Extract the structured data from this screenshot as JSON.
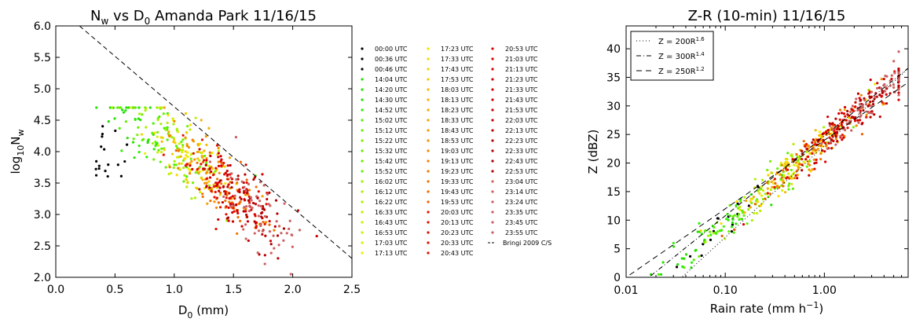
{
  "chart_data": [
    {
      "type": "scatter",
      "title": "N_w vs D_0 Amanda Park 11/16/15",
      "title_parts": {
        "a": "N",
        "a_sub": "w",
        "b": " vs D",
        "b_sub": "0",
        "c": " Amanda Park 11/16/15"
      },
      "xlabel": "D_0 (mm)",
      "xlabel_parts": {
        "a": "D",
        "sub": "0",
        "b": " (mm)"
      },
      "ylabel": "log10 N_w",
      "ylabel_parts": {
        "a": "log",
        "sub1": "10",
        "b": "N",
        "sub2": "w"
      },
      "xlim": [
        0.0,
        2.5
      ],
      "ylim": [
        2.0,
        6.0
      ],
      "xticks": [
        "0.0",
        "0.5",
        "1.0",
        "1.5",
        "2.0",
        "2.5"
      ],
      "yticks": [
        "2.0",
        "2.5",
        "3.0",
        "3.5",
        "4.0",
        "4.5",
        "5.0",
        "5.5",
        "6.0"
      ],
      "reference_line": {
        "name": "Bringi 2009 C/S",
        "x": [
          0.2,
          2.5
        ],
        "y": [
          6.0,
          2.3
        ]
      },
      "legend": {
        "columns": [
          [
            {
              "label": "00:00 UTC",
              "color": "#000000"
            },
            {
              "label": "00:36 UTC",
              "color": "#000000"
            },
            {
              "label": "00:46 UTC",
              "color": "#000000"
            },
            {
              "label": "14:04 UTC",
              "color": "#22e000"
            },
            {
              "label": "14:20 UTC",
              "color": "#22e000"
            },
            {
              "label": "14:30 UTC",
              "color": "#22e000"
            },
            {
              "label": "14:52 UTC",
              "color": "#2bf000"
            },
            {
              "label": "15:02 UTC",
              "color": "#4cf000"
            },
            {
              "label": "15:12 UTC",
              "color": "#66f000"
            },
            {
              "label": "15:22 UTC",
              "color": "#77f000"
            },
            {
              "label": "15:32 UTC",
              "color": "#66f000"
            },
            {
              "label": "15:42 UTC",
              "color": "#66f000"
            },
            {
              "label": "15:52 UTC",
              "color": "#66f000"
            },
            {
              "label": "16:02 UTC",
              "color": "#99f000"
            },
            {
              "label": "16:12 UTC",
              "color": "#aaf000"
            },
            {
              "label": "16:22 UTC",
              "color": "#aaf000"
            },
            {
              "label": "16:33 UTC",
              "color": "#bbf000"
            },
            {
              "label": "16:43 UTC",
              "color": "#ccf000"
            },
            {
              "label": "16:53 UTC",
              "color": "#ccf000"
            },
            {
              "label": "17:03 UTC",
              "color": "#ddf000"
            },
            {
              "label": "17:13 UTC",
              "color": "#eef000"
            }
          ],
          [
            {
              "label": "17:23 UTC",
              "color": "#f4e000"
            },
            {
              "label": "17:33 UTC",
              "color": "#f4d800"
            },
            {
              "label": "17:43 UTC",
              "color": "#f4d000"
            },
            {
              "label": "17:53 UTC",
              "color": "#f4c800"
            },
            {
              "label": "18:03 UTC",
              "color": "#f4b800"
            },
            {
              "label": "18:13 UTC",
              "color": "#f4b000"
            },
            {
              "label": "18:23 UTC",
              "color": "#f4a800"
            },
            {
              "label": "18:33 UTC",
              "color": "#f4a000"
            },
            {
              "label": "18:43 UTC",
              "color": "#f49800"
            },
            {
              "label": "18:53 UTC",
              "color": "#f49000"
            },
            {
              "label": "19:03 UTC",
              "color": "#f08800"
            },
            {
              "label": "19:13 UTC",
              "color": "#f08000"
            },
            {
              "label": "19:23 UTC",
              "color": "#f07800"
            },
            {
              "label": "19:33 UTC",
              "color": "#f07000"
            },
            {
              "label": "19:43 UTC",
              "color": "#f06800"
            },
            {
              "label": "19:53 UTC",
              "color": "#f06000"
            },
            {
              "label": "20:03 UTC",
              "color": "#e81000"
            },
            {
              "label": "20:13 UTC",
              "color": "#e81000"
            },
            {
              "label": "20:23 UTC",
              "color": "#e01000"
            },
            {
              "label": "20:33 UTC",
              "color": "#e01000"
            },
            {
              "label": "20:43 UTC",
              "color": "#e01000"
            }
          ],
          [
            {
              "label": "20:53 UTC",
              "color": "#e00000"
            },
            {
              "label": "21:03 UTC",
              "color": "#d80000"
            },
            {
              "label": "21:13 UTC",
              "color": "#d80000"
            },
            {
              "label": "21:23 UTC",
              "color": "#d00000"
            },
            {
              "label": "21:33 UTC",
              "color": "#d00000"
            },
            {
              "label": "21:43 UTC",
              "color": "#c80000"
            },
            {
              "label": "21:53 UTC",
              "color": "#c80000"
            },
            {
              "label": "22:03 UTC",
              "color": "#c00000"
            },
            {
              "label": "22:13 UTC",
              "color": "#c00000"
            },
            {
              "label": "22:23 UTC",
              "color": "#b80000"
            },
            {
              "label": "22:33 UTC",
              "color": "#b80000"
            },
            {
              "label": "22:43 UTC",
              "color": "#b00000"
            },
            {
              "label": "22:53 UTC",
              "color": "#b00000"
            },
            {
              "label": "23:04 UTC",
              "color": "#d06060"
            },
            {
              "label": "23:14 UTC",
              "color": "#d06060"
            },
            {
              "label": "23:24 UTC",
              "color": "#c86060"
            },
            {
              "label": "23:35 UTC",
              "color": "#c86060"
            },
            {
              "label": "23:45 UTC",
              "color": "#c86060"
            },
            {
              "label": "23:55 UTC",
              "color": "#c86060"
            },
            {
              "label": "Bringi 2009 C/S",
              "color": "#000000",
              "line": true
            }
          ]
        ]
      },
      "grid": false,
      "legend_placement": "right, outside axes"
    },
    {
      "type": "scatter",
      "title": "Z-R (10-min) 11/16/15",
      "xlabel": "Rain rate (mm h^-1)",
      "xlabel_parts": {
        "a": "Rain rate (mm h",
        "sup": "−1",
        "b": ")"
      },
      "ylabel": "Z (dBZ)",
      "xscale": "log",
      "xlim": [
        0.01,
        7.0
      ],
      "ylim": [
        0,
        44
      ],
      "xticks": [
        "0.01",
        "0.10",
        "1.00"
      ],
      "yticks": [
        "0",
        "5",
        "10",
        "15",
        "20",
        "25",
        "30",
        "35",
        "40"
      ],
      "relations": [
        {
          "name": "Z = 200R^1.6",
          "label_a": "Z = 200R",
          "label_sup": "1.6",
          "a": 200,
          "b": 1.6,
          "style": "dotted"
        },
        {
          "name": "Z = 300R^1.4",
          "label_a": "Z = 300R",
          "label_sup": "1.4",
          "a": 300,
          "b": 1.4,
          "style": "dashdot"
        },
        {
          "name": "Z = 250R^1.2",
          "label_a": "Z = 250R",
          "label_sup": "1.2",
          "a": 250,
          "b": 1.2,
          "style": "dashed"
        }
      ],
      "grid": false,
      "legend_placement": "top-left"
    }
  ]
}
